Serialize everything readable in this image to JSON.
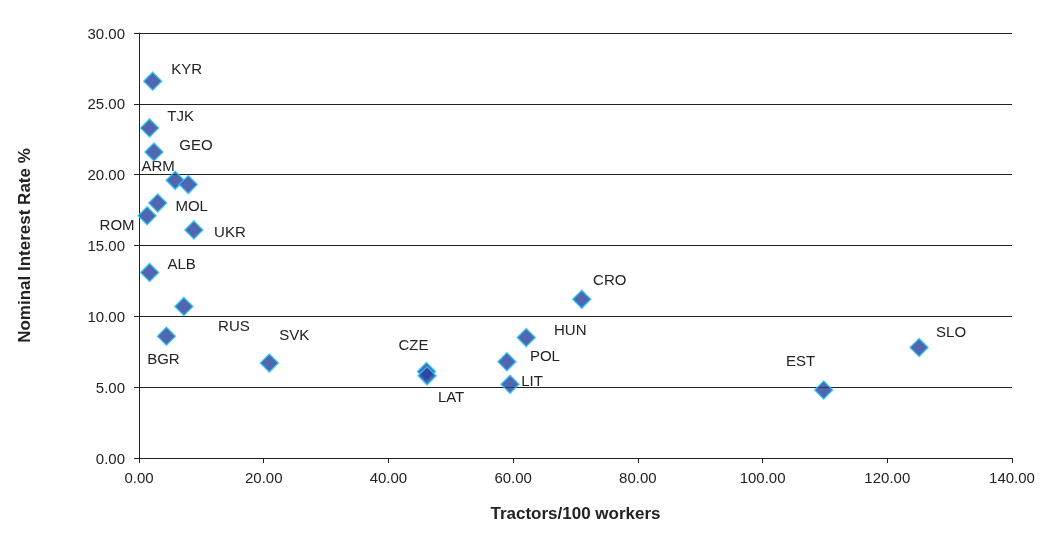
{
  "chart_data": {
    "type": "scatter",
    "xlabel": "Tractors/100 workers",
    "ylabel": "Nominal Interest Rate %",
    "x": [
      2.2,
      1.7,
      2.4,
      5.8,
      7.9,
      3.0,
      1.3,
      8.8,
      1.7,
      7.2,
      4.4,
      20.9,
      46.1,
      46.2,
      59.0,
      62.1,
      59.5,
      71.0,
      109.8,
      125.1
    ],
    "series": [
      {
        "color": "#24409a",
        "values": [
          26.6,
          23.3,
          21.6,
          19.6,
          19.3,
          18.0,
          17.1,
          16.1,
          13.1,
          10.7,
          8.6,
          6.7,
          6.1,
          5.8,
          6.8,
          8.5,
          5.2,
          11.2,
          4.8,
          7.8
        ]
      }
    ],
    "marker": "diamond",
    "grid": "y",
    "xlim": [
      0,
      140
    ],
    "xticks": [
      {
        "value": 0,
        "label": "0.00"
      },
      {
        "value": 20,
        "label": "20.00"
      },
      {
        "value": 40,
        "label": "40.00"
      },
      {
        "value": 60,
        "label": "60.00"
      },
      {
        "value": 80,
        "label": "80.00"
      },
      {
        "value": 100,
        "label": "100.00"
      },
      {
        "value": 120,
        "label": "120.00"
      },
      {
        "value": 140,
        "label": "140.00"
      }
    ],
    "ylim": [
      0,
      30
    ],
    "yticks": [
      {
        "value": 0,
        "label": "0.00"
      },
      {
        "value": 5,
        "label": "5.00"
      },
      {
        "value": 10,
        "label": "10.00"
      },
      {
        "value": 15,
        "label": "15.00"
      },
      {
        "value": 20,
        "label": "20.00"
      },
      {
        "value": 25,
        "label": "25.00"
      },
      {
        "value": 30,
        "label": "30.00"
      }
    ],
    "annotations": [
      {
        "text": "KYR",
        "x": 2.2,
        "y": 26.6
      },
      {
        "text": "TJK",
        "x": 1.7,
        "y": 23.3
      },
      {
        "text": "GEO",
        "x": 2.4,
        "y": 21.6
      },
      {
        "text": "ARM",
        "x": 5.8,
        "y": 19.6
      },
      {
        "text": "MOL",
        "x": 3.0,
        "y": 18.0
      },
      {
        "text": "ROM",
        "x": 1.3,
        "y": 17.1
      },
      {
        "text": "UKR",
        "x": 8.8,
        "y": 16.1
      },
      {
        "text": "ALB",
        "x": 1.7,
        "y": 13.1
      },
      {
        "text": "RUS",
        "x": 7.2,
        "y": 10.7
      },
      {
        "text": "BGR",
        "x": 4.4,
        "y": 8.6
      },
      {
        "text": "SVK",
        "x": 20.9,
        "y": 6.7
      },
      {
        "text": "CZE",
        "x": 46.1,
        "y": 6.1
      },
      {
        "text": "LAT",
        "x": 46.2,
        "y": 5.8
      },
      {
        "text": "POL",
        "x": 59.0,
        "y": 6.8
      },
      {
        "text": "HUN",
        "x": 62.1,
        "y": 8.5
      },
      {
        "text": "LIT",
        "x": 59.5,
        "y": 5.2
      },
      {
        "text": "CRO",
        "x": 71.0,
        "y": 11.2
      },
      {
        "text": "EST",
        "x": 109.8,
        "y": 4.8
      },
      {
        "text": "SLO",
        "x": 125.1,
        "y": 7.8
      }
    ]
  }
}
